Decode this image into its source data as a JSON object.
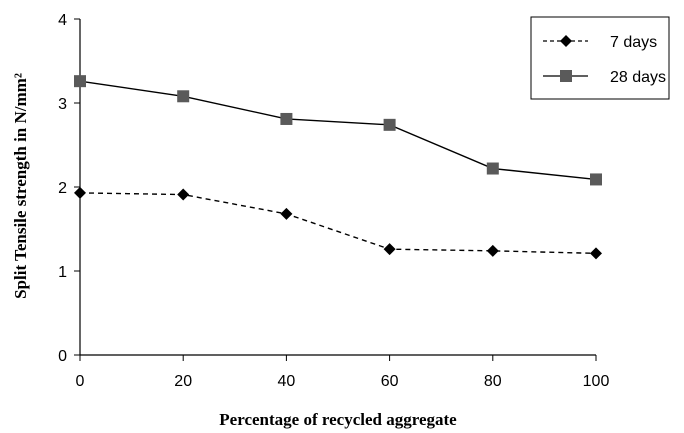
{
  "chart_data": {
    "type": "line",
    "title": "",
    "xlabel": "Percentage of recycled aggregate",
    "ylabel": "Split Tensile strength in N/mm²",
    "x": [
      0,
      20,
      40,
      60,
      80,
      100
    ],
    "xlim": [
      0,
      100
    ],
    "ylim": [
      0,
      4
    ],
    "xticks": [
      "0",
      "20",
      "40",
      "60",
      "80",
      "100"
    ],
    "yticks": [
      "0",
      "1",
      "2",
      "3",
      "4"
    ],
    "grid": false,
    "legend_position": "top-right",
    "series": [
      {
        "name": "7 days",
        "values": [
          1.93,
          1.91,
          1.68,
          1.26,
          1.24,
          1.21
        ],
        "line_style": "dashed",
        "marker": "diamond",
        "color": "#000000"
      },
      {
        "name": "28 days",
        "values": [
          3.26,
          3.08,
          2.81,
          2.74,
          2.22,
          2.09
        ],
        "line_style": "solid",
        "marker": "square",
        "color": "#000000",
        "marker_color": "#5a5a5a"
      }
    ]
  }
}
